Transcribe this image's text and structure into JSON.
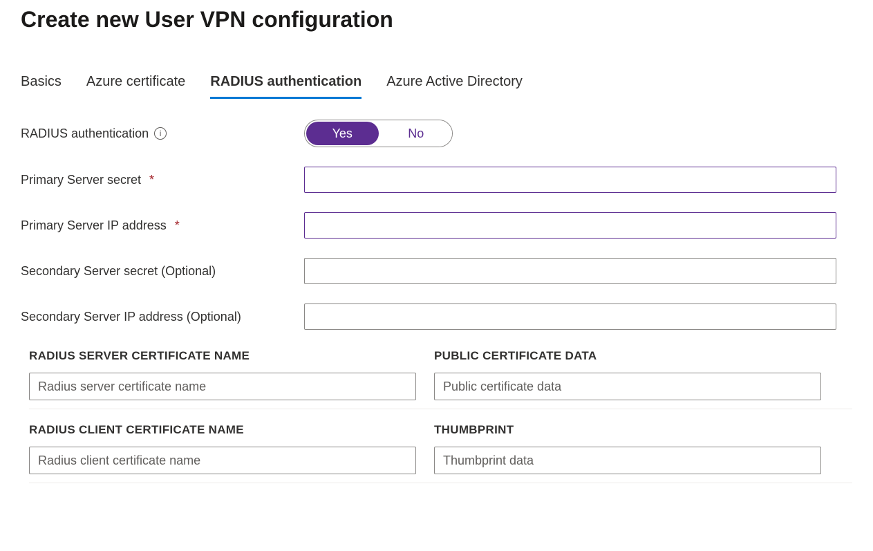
{
  "page": {
    "title": "Create new User VPN configuration"
  },
  "tabs": {
    "basics": "Basics",
    "azure_cert": "Azure certificate",
    "radius": "RADIUS authentication",
    "aad": "Azure Active Directory",
    "active": "radius"
  },
  "form": {
    "radius_auth": {
      "label": "RADIUS authentication",
      "yes": "Yes",
      "no": "No",
      "selected": "yes"
    },
    "primary_secret": {
      "label": "Primary Server secret",
      "required": true,
      "value": ""
    },
    "primary_ip": {
      "label": "Primary Server IP address",
      "required": true,
      "value": ""
    },
    "secondary_secret": {
      "label": "Secondary Server secret (Optional)",
      "required": false,
      "value": ""
    },
    "secondary_ip": {
      "label": "Secondary Server IP address (Optional)",
      "required": false,
      "value": ""
    }
  },
  "cert_table": {
    "server_cert_header": "RADIUS SERVER CERTIFICATE NAME",
    "public_cert_header": "PUBLIC CERTIFICATE DATA",
    "client_cert_header": "RADIUS CLIENT CERTIFICATE NAME",
    "thumbprint_header": "THUMBPRINT",
    "server_cert_placeholder": "Radius server certificate name",
    "public_cert_placeholder": "Public certificate data",
    "client_cert_placeholder": "Radius client certificate name",
    "thumbprint_placeholder": "Thumbprint data"
  },
  "colors": {
    "accent_purple": "#5c2d91",
    "accent_blue": "#0078d4",
    "required_red": "#a4262c",
    "border_gray": "#8a8886",
    "text_primary": "#323130"
  }
}
